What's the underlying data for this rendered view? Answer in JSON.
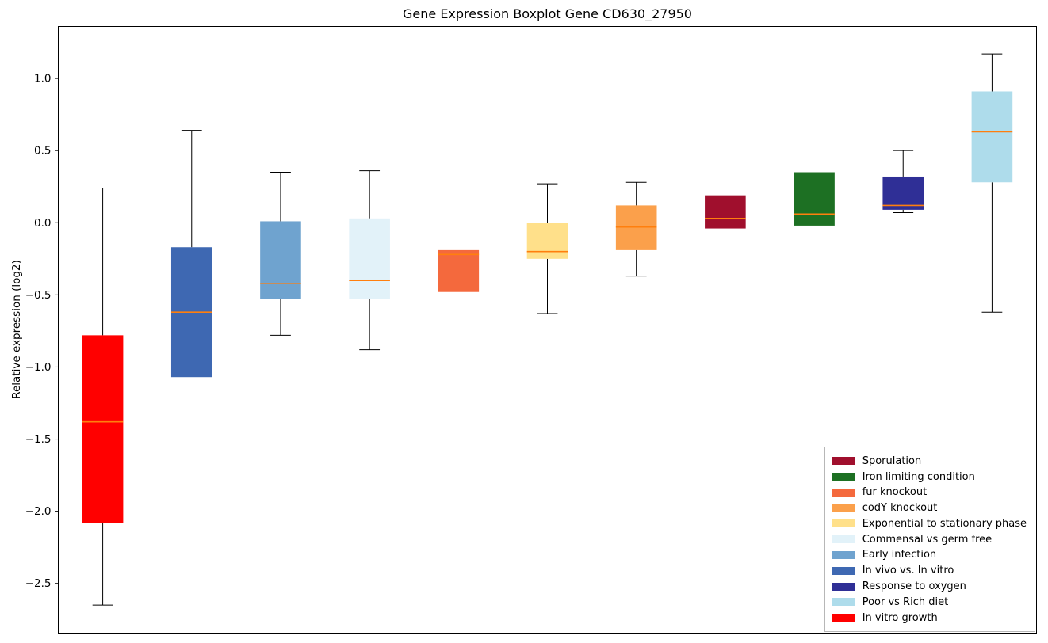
{
  "title": "Gene Expression Boxplot Gene CD630_27950",
  "axes": {
    "ylabel": "Relative expression (log2)",
    "ylim": [
      -2.85,
      1.36
    ],
    "yticks": [
      -2.5,
      -2.0,
      -1.5,
      -1.0,
      -0.5,
      0.0,
      0.5,
      1.0
    ],
    "ytick_labels": [
      "−2.5",
      "−2.0",
      "−1.5",
      "−1.0",
      "−0.5",
      "0.0",
      "0.5",
      "1.0"
    ],
    "xtick_labels": []
  },
  "chart_data": {
    "type": "boxplot",
    "title": "Gene Expression Boxplot Gene CD630_27950",
    "ylabel": "Relative expression (log2)",
    "ylim": [
      -2.85,
      1.36
    ],
    "grid": false,
    "median_color": "#ff7f0e",
    "whisker_color": "#000000",
    "series": [
      {
        "label": "In vitro growth",
        "color": "#ff0000",
        "whisker_low": -2.65,
        "q1": -2.08,
        "median": -1.38,
        "q3": -0.78,
        "whisker_high": 0.24
      },
      {
        "label": "In vivo vs. In vitro",
        "color": "#3e68b2",
        "whisker_low": -1.07,
        "q1": -1.07,
        "median": -0.62,
        "q3": -0.17,
        "whisker_high": 0.64
      },
      {
        "label": "Early infection",
        "color": "#6fa3cf",
        "whisker_low": -0.78,
        "q1": -0.53,
        "median": -0.42,
        "q3": 0.01,
        "whisker_high": 0.35
      },
      {
        "label": "Commensal vs germ free",
        "color": "#e2f2f9",
        "whisker_low": -0.88,
        "q1": -0.53,
        "median": -0.4,
        "q3": 0.03,
        "whisker_high": 0.36
      },
      {
        "label": "fur knockout",
        "color": "#f4693d",
        "whisker_low": -0.48,
        "q1": -0.48,
        "median": -0.22,
        "q3": -0.19,
        "whisker_high": -0.19
      },
      {
        "label": "Exponential to stationary phase",
        "color": "#ffe08a",
        "whisker_low": -0.63,
        "q1": -0.25,
        "median": -0.2,
        "q3": 0.0,
        "whisker_high": 0.27
      },
      {
        "label": "codY knockout",
        "color": "#fba04b",
        "whisker_low": -0.37,
        "q1": -0.19,
        "median": -0.03,
        "q3": 0.12,
        "whisker_high": 0.28
      },
      {
        "label": "Sporulation",
        "color": "#a00f2d",
        "whisker_low": -0.04,
        "q1": -0.04,
        "median": 0.03,
        "q3": 0.19,
        "whisker_high": 0.19
      },
      {
        "label": "Iron limiting condition",
        "color": "#1d7023",
        "whisker_low": -0.02,
        "q1": -0.02,
        "median": 0.06,
        "q3": 0.35,
        "whisker_high": 0.35
      },
      {
        "label": "Response to oxygen",
        "color": "#2f2f96",
        "whisker_low": 0.07,
        "q1": 0.09,
        "median": 0.12,
        "q3": 0.32,
        "whisker_high": 0.5
      },
      {
        "label": "Poor vs Rich diet",
        "color": "#aedceb",
        "whisker_low": -0.62,
        "q1": 0.28,
        "median": 0.63,
        "q3": 0.91,
        "whisker_high": 1.17
      }
    ],
    "legend": {
      "position": "lower right",
      "entries": [
        {
          "label": "Sporulation",
          "color": "#a00f2d"
        },
        {
          "label": "Iron limiting condition",
          "color": "#1d7023"
        },
        {
          "label": "fur knockout",
          "color": "#f4693d"
        },
        {
          "label": "codY knockout",
          "color": "#fba04b"
        },
        {
          "label": "Exponential to stationary phase",
          "color": "#ffe08a"
        },
        {
          "label": "Commensal vs germ free",
          "color": "#e2f2f9"
        },
        {
          "label": "Early infection",
          "color": "#6fa3cf"
        },
        {
          "label": "In vivo vs. In vitro",
          "color": "#3e68b2"
        },
        {
          "label": "Response to oxygen",
          "color": "#2f2f96"
        },
        {
          "label": "Poor vs Rich diet",
          "color": "#aedceb"
        },
        {
          "label": "In vitro growth",
          "color": "#ff0000"
        }
      ]
    }
  }
}
